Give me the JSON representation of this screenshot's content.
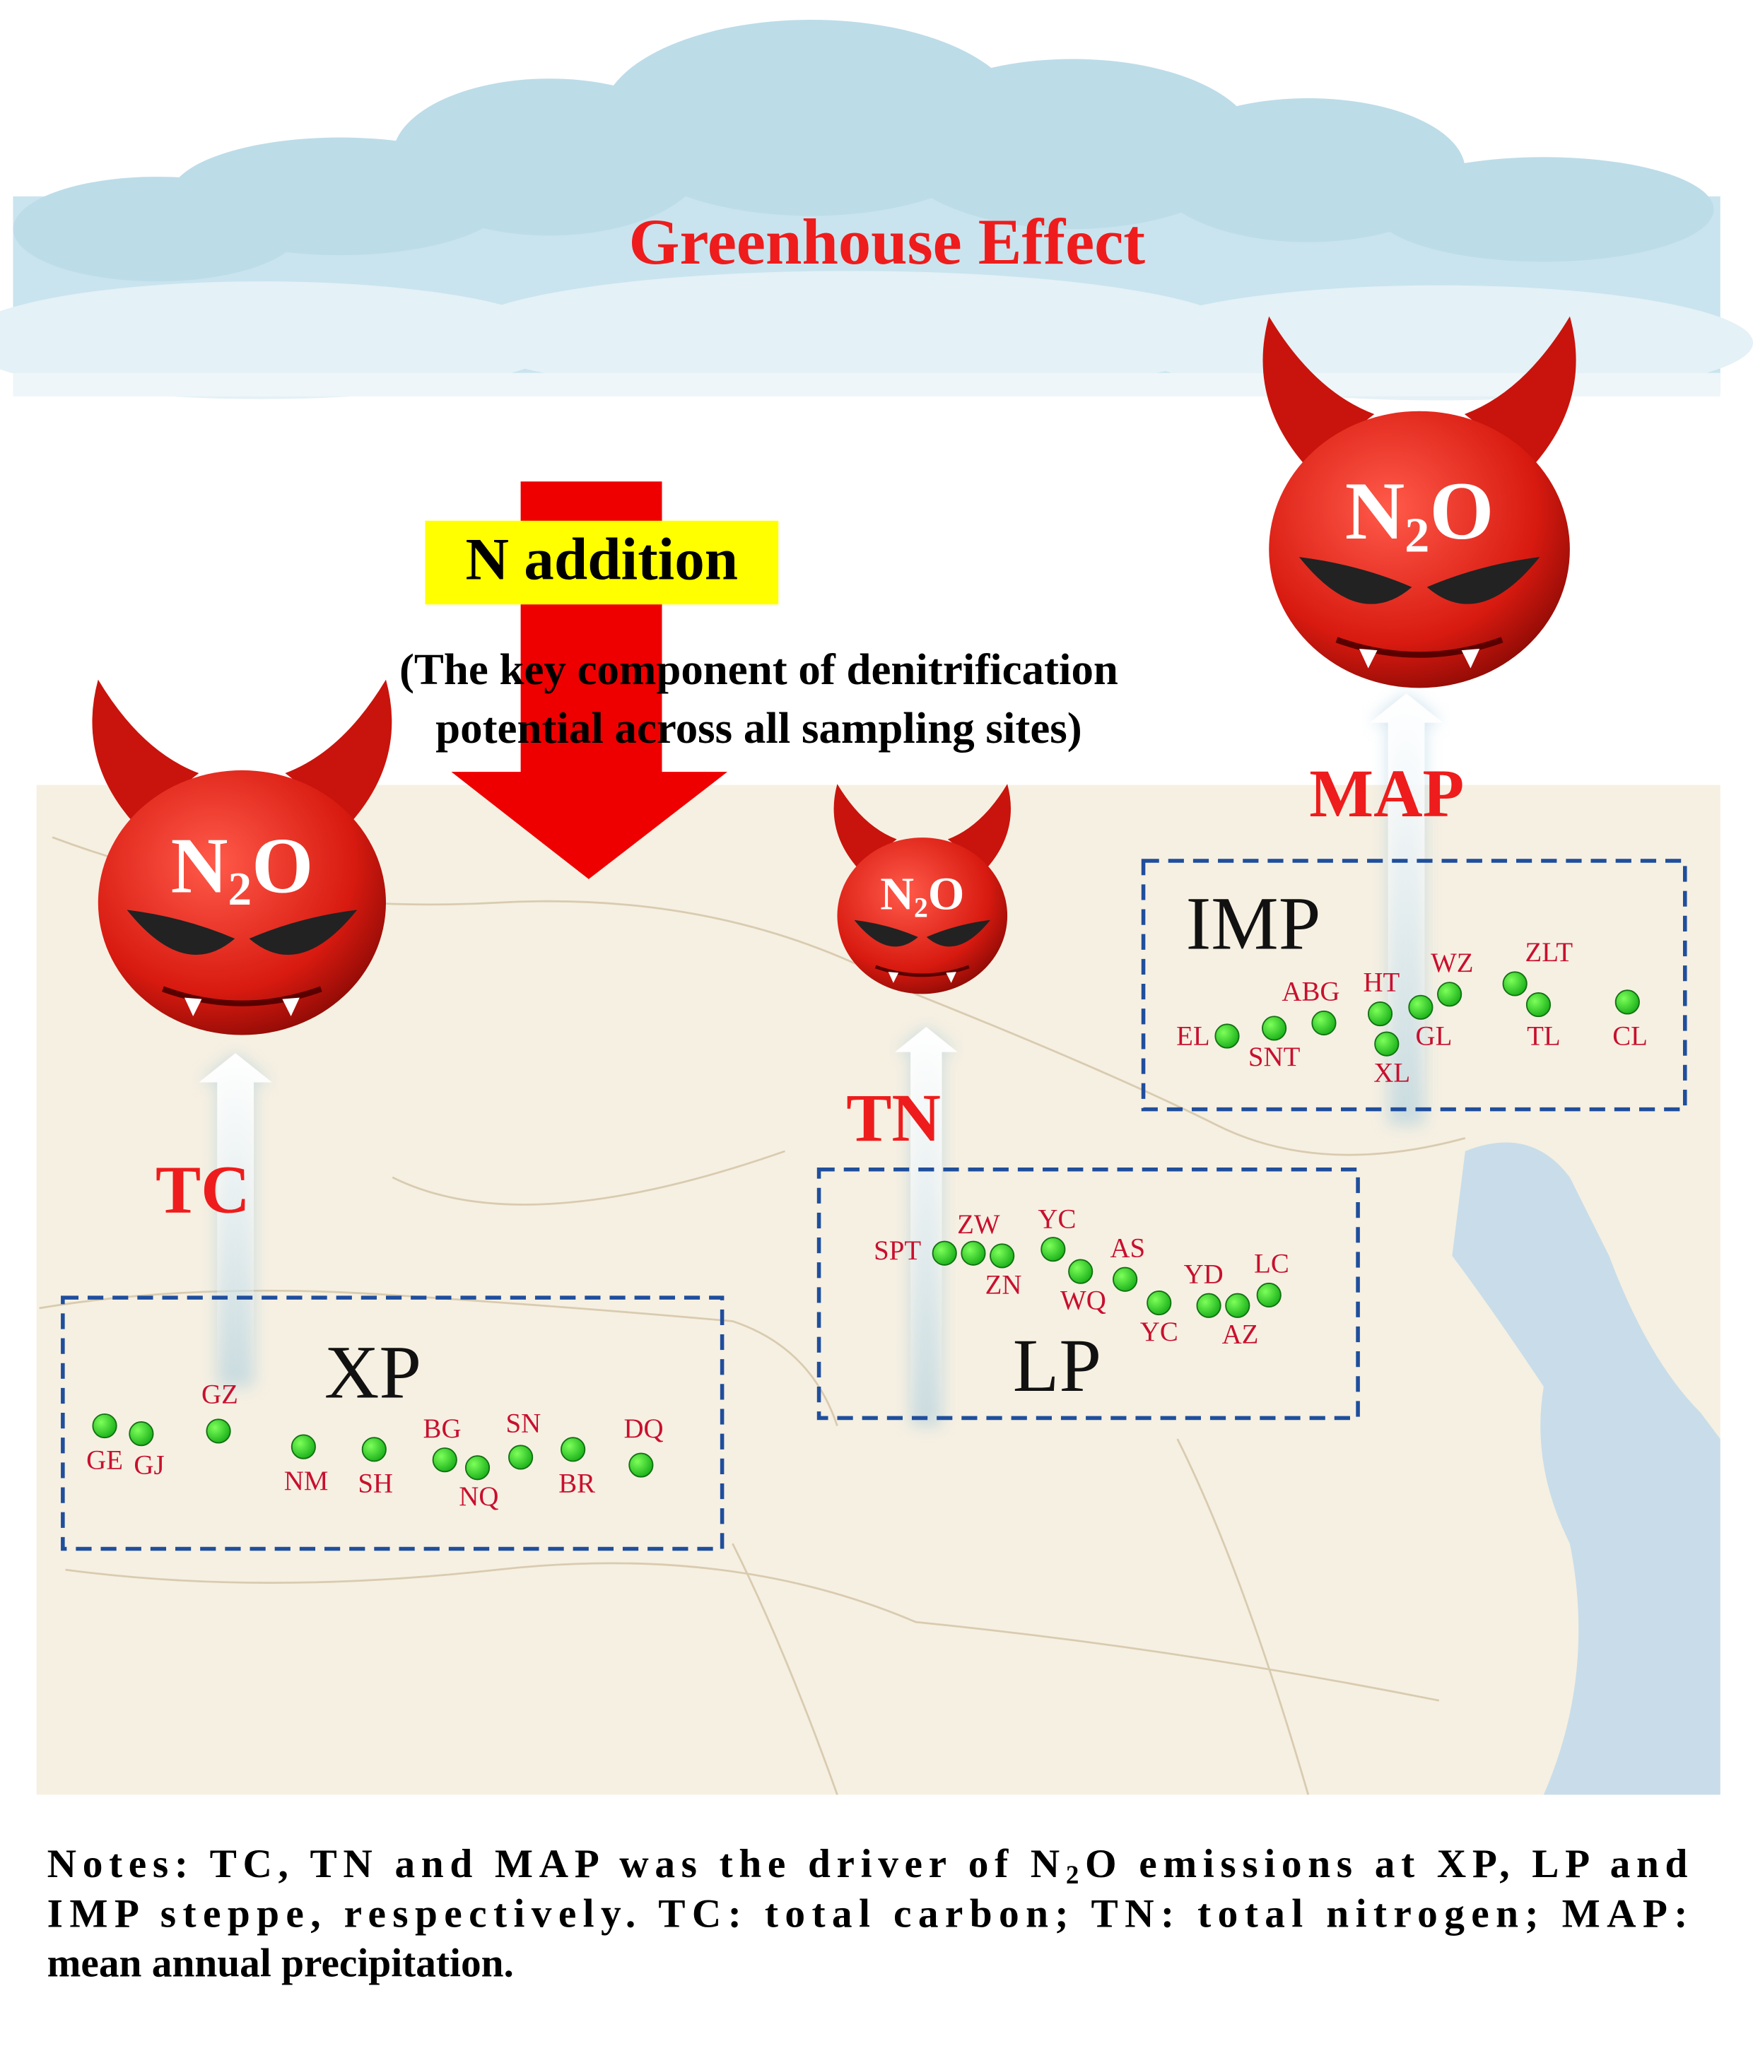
{
  "title": "Greenhouse Effect",
  "treatment": {
    "label": "N addition",
    "note_lines": [
      "(The key component of denitrification",
      "potential across all sampling sites)"
    ]
  },
  "gas": {
    "main": "N",
    "sub": "2",
    "end": "O"
  },
  "regions": [
    {
      "name": "XP",
      "driver": "TC",
      "sites": [
        "GE",
        "GJ",
        "GZ",
        "NM",
        "SH",
        "BG",
        "NQ",
        "SN",
        "BR",
        "DQ"
      ]
    },
    {
      "name": "LP",
      "driver": "TN",
      "sites": [
        "SPT",
        "ZW",
        "ZN",
        "YC",
        "WQ",
        "AS",
        "YC",
        "YD",
        "AZ",
        "LC"
      ]
    },
    {
      "name": "IMP",
      "driver": "MAP",
      "sites": [
        "EL",
        "SNT",
        "ABG",
        "HT",
        "XL",
        "GL",
        "WZ",
        "ZLT",
        "TL",
        "CL"
      ]
    }
  ],
  "notes": [
    [
      "Notes: TC, TN and MAP was the driver of N",
      "2",
      "O emissions at XP, LP and"
    ],
    [
      "IMP steppe, respectively. TC: total carbon; TN: total nitrogen; MAP:"
    ],
    [
      "mean annual precipitation."
    ]
  ]
}
